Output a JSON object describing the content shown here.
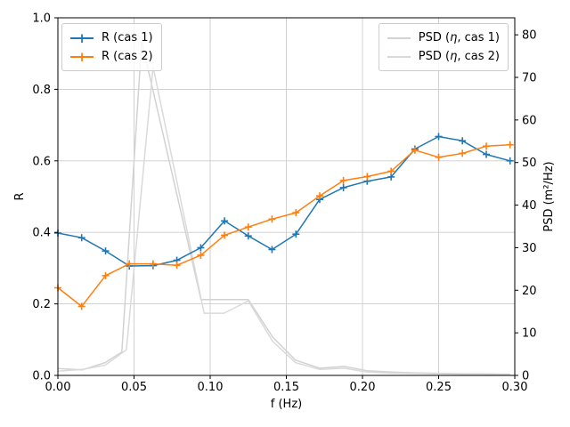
{
  "figure": {
    "background": "#ffffff"
  },
  "chart_data": {
    "type": "line",
    "title": "",
    "xlabel": "f (Hz)",
    "ylabel_left": "R",
    "ylabel_right": "PSD (m²/Hz)",
    "xlim": [
      0.0,
      0.3
    ],
    "ylim_left": [
      0.0,
      1.0
    ],
    "ylim_right": [
      0,
      84
    ],
    "grid": true,
    "grid_color": "#cccccc",
    "axis_color": "#000000",
    "x_ticks": {
      "values": [
        0.0,
        0.05,
        0.1,
        0.15,
        0.2,
        0.25,
        0.3
      ],
      "labels": [
        "0.00",
        "0.05",
        "0.10",
        "0.15",
        "0.20",
        "0.25",
        "0.30"
      ]
    },
    "y_ticks_left": {
      "values": [
        0.0,
        0.2,
        0.4,
        0.6,
        0.8,
        1.0
      ],
      "labels": [
        "0.0",
        "0.2",
        "0.4",
        "0.6",
        "0.8",
        "1.0"
      ]
    },
    "y_ticks_right": {
      "values": [
        0,
        10,
        20,
        30,
        40,
        50,
        60,
        70,
        80
      ],
      "labels": [
        "0",
        "10",
        "20",
        "30",
        "40",
        "50",
        "60",
        "70",
        "80"
      ]
    },
    "legend_left": {
      "position": "upper left",
      "items": [
        {
          "label": "R (cas 1)",
          "color": "#1f77b4",
          "marker": "+"
        },
        {
          "label": "R (cas 2)",
          "color": "#ff7f0e",
          "marker": "+"
        }
      ]
    },
    "legend_right": {
      "position": "upper right",
      "items": [
        {
          "label_pre": "PSD (",
          "label_sym": "η",
          "label_post": ", cas 1)",
          "color": "#d2d2d2"
        },
        {
          "label_pre": "PSD (",
          "label_sym": "η",
          "label_post": ", cas 2)",
          "color": "#dadada"
        }
      ]
    },
    "series": [
      {
        "name": "PSD (eta, cas 1)",
        "axis": "right",
        "color": "#d2d2d2",
        "marker": null,
        "points": [
          [
            0.0,
            1.6
          ],
          [
            0.016,
            1.3
          ],
          [
            0.031,
            3.0
          ],
          [
            0.042,
            5.5
          ],
          [
            0.055,
            78.5
          ],
          [
            0.094,
            17.8
          ],
          [
            0.125,
            17.8
          ],
          [
            0.141,
            9.0
          ],
          [
            0.156,
            3.6
          ],
          [
            0.172,
            1.7
          ],
          [
            0.188,
            2.1
          ],
          [
            0.203,
            1.1
          ],
          [
            0.219,
            0.8
          ],
          [
            0.234,
            0.6
          ],
          [
            0.25,
            0.5
          ],
          [
            0.266,
            0.4
          ],
          [
            0.281,
            0.35
          ],
          [
            0.297,
            0.3
          ]
        ]
      },
      {
        "name": "PSD (eta, cas 2)",
        "axis": "right",
        "color": "#dadada",
        "marker": null,
        "points": [
          [
            0.0,
            1.0
          ],
          [
            0.016,
            1.4
          ],
          [
            0.031,
            2.4
          ],
          [
            0.045,
            6.0
          ],
          [
            0.0625,
            72.5
          ],
          [
            0.096,
            14.6
          ],
          [
            0.109,
            14.6
          ],
          [
            0.125,
            17.5
          ],
          [
            0.141,
            8.0
          ],
          [
            0.156,
            3.0
          ],
          [
            0.172,
            1.4
          ],
          [
            0.188,
            1.7
          ],
          [
            0.203,
            0.8
          ],
          [
            0.219,
            0.55
          ],
          [
            0.234,
            0.45
          ],
          [
            0.25,
            0.35
          ],
          [
            0.266,
            0.28
          ],
          [
            0.281,
            0.22
          ],
          [
            0.297,
            0.18
          ]
        ]
      },
      {
        "name": "R (cas 1)",
        "axis": "left",
        "color": "#1f77b4",
        "marker": "+",
        "points": [
          [
            0.0,
            0.398
          ],
          [
            0.0156,
            0.385
          ],
          [
            0.0313,
            0.348
          ],
          [
            0.0469,
            0.306
          ],
          [
            0.0625,
            0.307
          ],
          [
            0.0781,
            0.322
          ],
          [
            0.0938,
            0.357
          ],
          [
            0.1094,
            0.432
          ],
          [
            0.125,
            0.39
          ],
          [
            0.1406,
            0.352
          ],
          [
            0.1563,
            0.395
          ],
          [
            0.1719,
            0.492
          ],
          [
            0.1875,
            0.525
          ],
          [
            0.2031,
            0.543
          ],
          [
            0.2188,
            0.555
          ],
          [
            0.2344,
            0.633
          ],
          [
            0.25,
            0.668
          ],
          [
            0.2656,
            0.656
          ],
          [
            0.2813,
            0.618
          ],
          [
            0.2969,
            0.6
          ]
        ]
      },
      {
        "name": "R (cas 2)",
        "axis": "left",
        "color": "#ff7f0e",
        "marker": "+",
        "points": [
          [
            0.0,
            0.245
          ],
          [
            0.0156,
            0.193
          ],
          [
            0.0313,
            0.279
          ],
          [
            0.0469,
            0.312
          ],
          [
            0.0625,
            0.312
          ],
          [
            0.0781,
            0.308
          ],
          [
            0.0938,
            0.336
          ],
          [
            0.1094,
            0.392
          ],
          [
            0.125,
            0.415
          ],
          [
            0.1406,
            0.437
          ],
          [
            0.1563,
            0.455
          ],
          [
            0.1719,
            0.502
          ],
          [
            0.1875,
            0.545
          ],
          [
            0.2031,
            0.556
          ],
          [
            0.2188,
            0.571
          ],
          [
            0.2344,
            0.63
          ],
          [
            0.25,
            0.61
          ],
          [
            0.2656,
            0.621
          ],
          [
            0.2813,
            0.641
          ],
          [
            0.2969,
            0.645
          ]
        ]
      }
    ]
  }
}
